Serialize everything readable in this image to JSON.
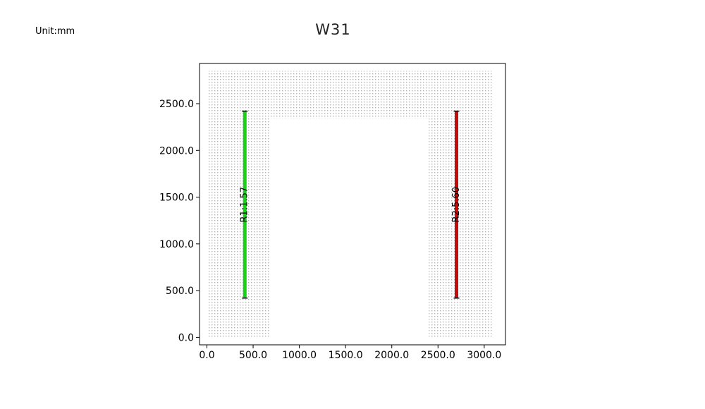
{
  "header": {
    "unit_label": "Unit:mm",
    "title": "W31"
  },
  "chart_data": {
    "type": "scatter",
    "title": "W31",
    "xlabel": "",
    "ylabel": "",
    "xlim": [
      -80,
      3230
    ],
    "ylim": [
      -80,
      2930
    ],
    "x_ticks": [
      0,
      500,
      1000,
      1500,
      2000,
      2500,
      3000
    ],
    "y_ticks": [
      0,
      500,
      1000,
      1500,
      2000,
      2500
    ],
    "x_tick_labels": [
      "0.0",
      "500.0",
      "1000.0",
      "1500.0",
      "2000.0",
      "2500.0",
      "3000.0"
    ],
    "y_tick_labels": [
      "0.0",
      "500.0",
      "1000.0",
      "1500.0",
      "2000.0",
      "2500.0"
    ],
    "grid": false,
    "wall_outline": [
      [
        0,
        0
      ],
      [
        3100,
        0
      ],
      [
        3100,
        2850
      ],
      [
        0,
        2850
      ]
    ],
    "opening": [
      [
        680,
        0
      ],
      [
        2400,
        0
      ],
      [
        2400,
        2340
      ],
      [
        680,
        2340
      ]
    ],
    "segments": [
      {
        "label": "R1:1.57",
        "x": 410,
        "y_start": 420,
        "y_end": 2420,
        "color": "#19d119"
      },
      {
        "label": "R2:5.60",
        "x": 2700,
        "y_start": 420,
        "y_end": 2420,
        "color": "#c40d0d"
      }
    ],
    "colors": {
      "points": "#b4b4b4",
      "axis": "#000000"
    }
  }
}
